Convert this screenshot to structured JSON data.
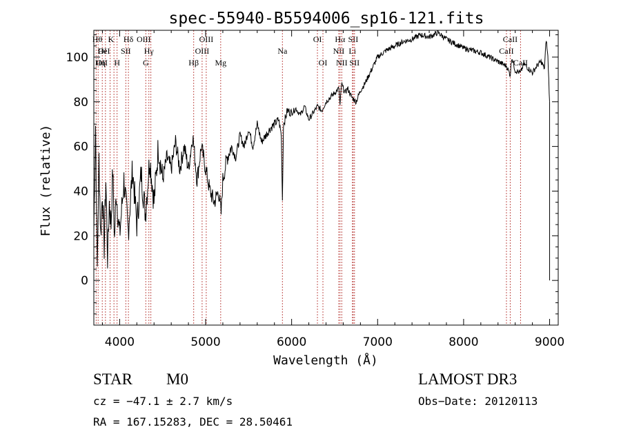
{
  "chart_data": {
    "type": "line",
    "title": "spec-55940-B5594006_sp16-121.fits",
    "xlabel": "Wavelength (Å)",
    "ylabel": "Flux (relative)",
    "xlim": [
      3700,
      9100
    ],
    "ylim": [
      -20,
      112
    ],
    "x_ticks": [
      4000,
      5000,
      6000,
      7000,
      8000,
      9000
    ],
    "y_ticks": [
      0,
      20,
      40,
      60,
      80,
      100
    ],
    "grid": false,
    "line_color": "#000000",
    "marker_color": "#c0504d",
    "series": [
      {
        "x": [
          3700,
          3720,
          3740,
          3760,
          3780,
          3800,
          3820,
          3840,
          3860,
          3880,
          3900,
          3920,
          3940,
          3960,
          3980,
          4000,
          4050,
          4100,
          4150,
          4200,
          4250,
          4300,
          4350,
          4400,
          4450,
          4500,
          4550,
          4600,
          4650,
          4700,
          4750,
          4800,
          4850,
          4900,
          4950,
          5000,
          5050,
          5100,
          5150,
          5180,
          5200,
          5250,
          5300,
          5350,
          5400,
          5450,
          5500,
          5550,
          5600,
          5650,
          5700,
          5750,
          5800,
          5850,
          5880,
          5893,
          5905,
          5930,
          5950,
          6000,
          6050,
          6100,
          6150,
          6200,
          6250,
          6300,
          6350,
          6400,
          6450,
          6500,
          6550,
          6563,
          6580,
          6620,
          6650,
          6700,
          6750,
          6800,
          6850,
          6900,
          6950,
          7000,
          7100,
          7200,
          7300,
          7400,
          7500,
          7600,
          7700,
          7800,
          7900,
          8000,
          8100,
          8200,
          8300,
          8400,
          8450,
          8500,
          8542,
          8560,
          8600,
          8662,
          8700,
          8750,
          8800,
          8850,
          8900,
          8940,
          8960,
          8980,
          9000
        ],
        "y": [
          22,
          70,
          5,
          55,
          20,
          40,
          15,
          45,
          10,
          35,
          25,
          50,
          18,
          40,
          30,
          20,
          45,
          22,
          50,
          25,
          48,
          30,
          55,
          35,
          60,
          45,
          55,
          50,
          62,
          50,
          60,
          50,
          65,
          45,
          60,
          50,
          40,
          35,
          40,
          30,
          45,
          55,
          60,
          55,
          65,
          60,
          68,
          60,
          70,
          62,
          65,
          68,
          70,
          72,
          65,
          36,
          70,
          73,
          76,
          75,
          77,
          74,
          78,
          72,
          75,
          78,
          76,
          80,
          82,
          84,
          86,
          78,
          88,
          84,
          86,
          82,
          80,
          85,
          88,
          92,
          96,
          100,
          103,
          105,
          107,
          108,
          110,
          109,
          111,
          108,
          106,
          104,
          103,
          102,
          100,
          98,
          97,
          96,
          92,
          100,
          94,
          93,
          97,
          95,
          93,
          96,
          98,
          95,
          108,
          100,
          80
        ]
      }
    ],
    "markers": [
      {
        "x": 3727,
        "label": "OII",
        "row": 3,
        "align": "start"
      },
      {
        "x": 3750,
        "label": "OI",
        "row": 2,
        "align": "start"
      },
      {
        "x": 3798,
        "label": "Hθ",
        "row": 1,
        "align": "end"
      },
      {
        "x": 3835,
        "label": "Hη",
        "row": 3,
        "align": "end"
      },
      {
        "x": 3889,
        "label": "HeI",
        "row": 2,
        "align": "end"
      },
      {
        "x": 3934,
        "label": "K",
        "row": 1,
        "align": "end"
      },
      {
        "x": 3970,
        "label": "H",
        "row": 3,
        "align": "middle"
      },
      {
        "x": 4072,
        "label": "SII",
        "row": 2,
        "align": "middle"
      },
      {
        "x": 4102,
        "label": "Hδ",
        "row": 1,
        "align": "middle"
      },
      {
        "x": 4304,
        "label": "G",
        "row": 3,
        "align": "middle"
      },
      {
        "x": 4340,
        "label": "Hγ",
        "row": 2,
        "align": "middle"
      },
      {
        "x": 4363,
        "label": "OIII",
        "row": 1,
        "align": "end"
      },
      {
        "x": 4861,
        "label": "Hβ",
        "row": 3,
        "align": "middle"
      },
      {
        "x": 4959,
        "label": "OIII",
        "row": 2,
        "align": "middle"
      },
      {
        "x": 5007,
        "label": "OIII",
        "row": 1,
        "align": "middle"
      },
      {
        "x": 5175,
        "label": "Mg",
        "row": 3,
        "align": "middle"
      },
      {
        "x": 5893,
        "label": "Na",
        "row": 2,
        "align": "middle"
      },
      {
        "x": 6300,
        "label": "OI",
        "row": 1,
        "align": "middle"
      },
      {
        "x": 6364,
        "label": "OI",
        "row": 3,
        "align": "middle"
      },
      {
        "x": 6548,
        "label": "NII",
        "row": 2,
        "align": "middle"
      },
      {
        "x": 6563,
        "label": "Hα",
        "row": 1,
        "align": "middle"
      },
      {
        "x": 6583,
        "label": "NII",
        "row": 3,
        "align": "middle"
      },
      {
        "x": 6707,
        "label": "Li",
        "row": 2,
        "align": "middle"
      },
      {
        "x": 6716,
        "label": "SII",
        "row": 1,
        "align": "middle"
      },
      {
        "x": 6731,
        "label": "SII",
        "row": 3,
        "align": "middle"
      },
      {
        "x": 8498,
        "label": "CaII",
        "row": 2,
        "align": "middle"
      },
      {
        "x": 8542,
        "label": "CaII",
        "row": 1,
        "align": "middle"
      },
      {
        "x": 8662,
        "label": "CaII",
        "row": 3,
        "align": "middle"
      }
    ]
  },
  "info": {
    "object_class": "STAR",
    "subclass": "M0",
    "survey": "LAMOST DR3",
    "redshift": "cz = −47.1 ± 2.7 km/s",
    "obs_date": "Obs−Date: 20120113",
    "coords": "RA = 167.15283, DEC =  28.50461"
  }
}
